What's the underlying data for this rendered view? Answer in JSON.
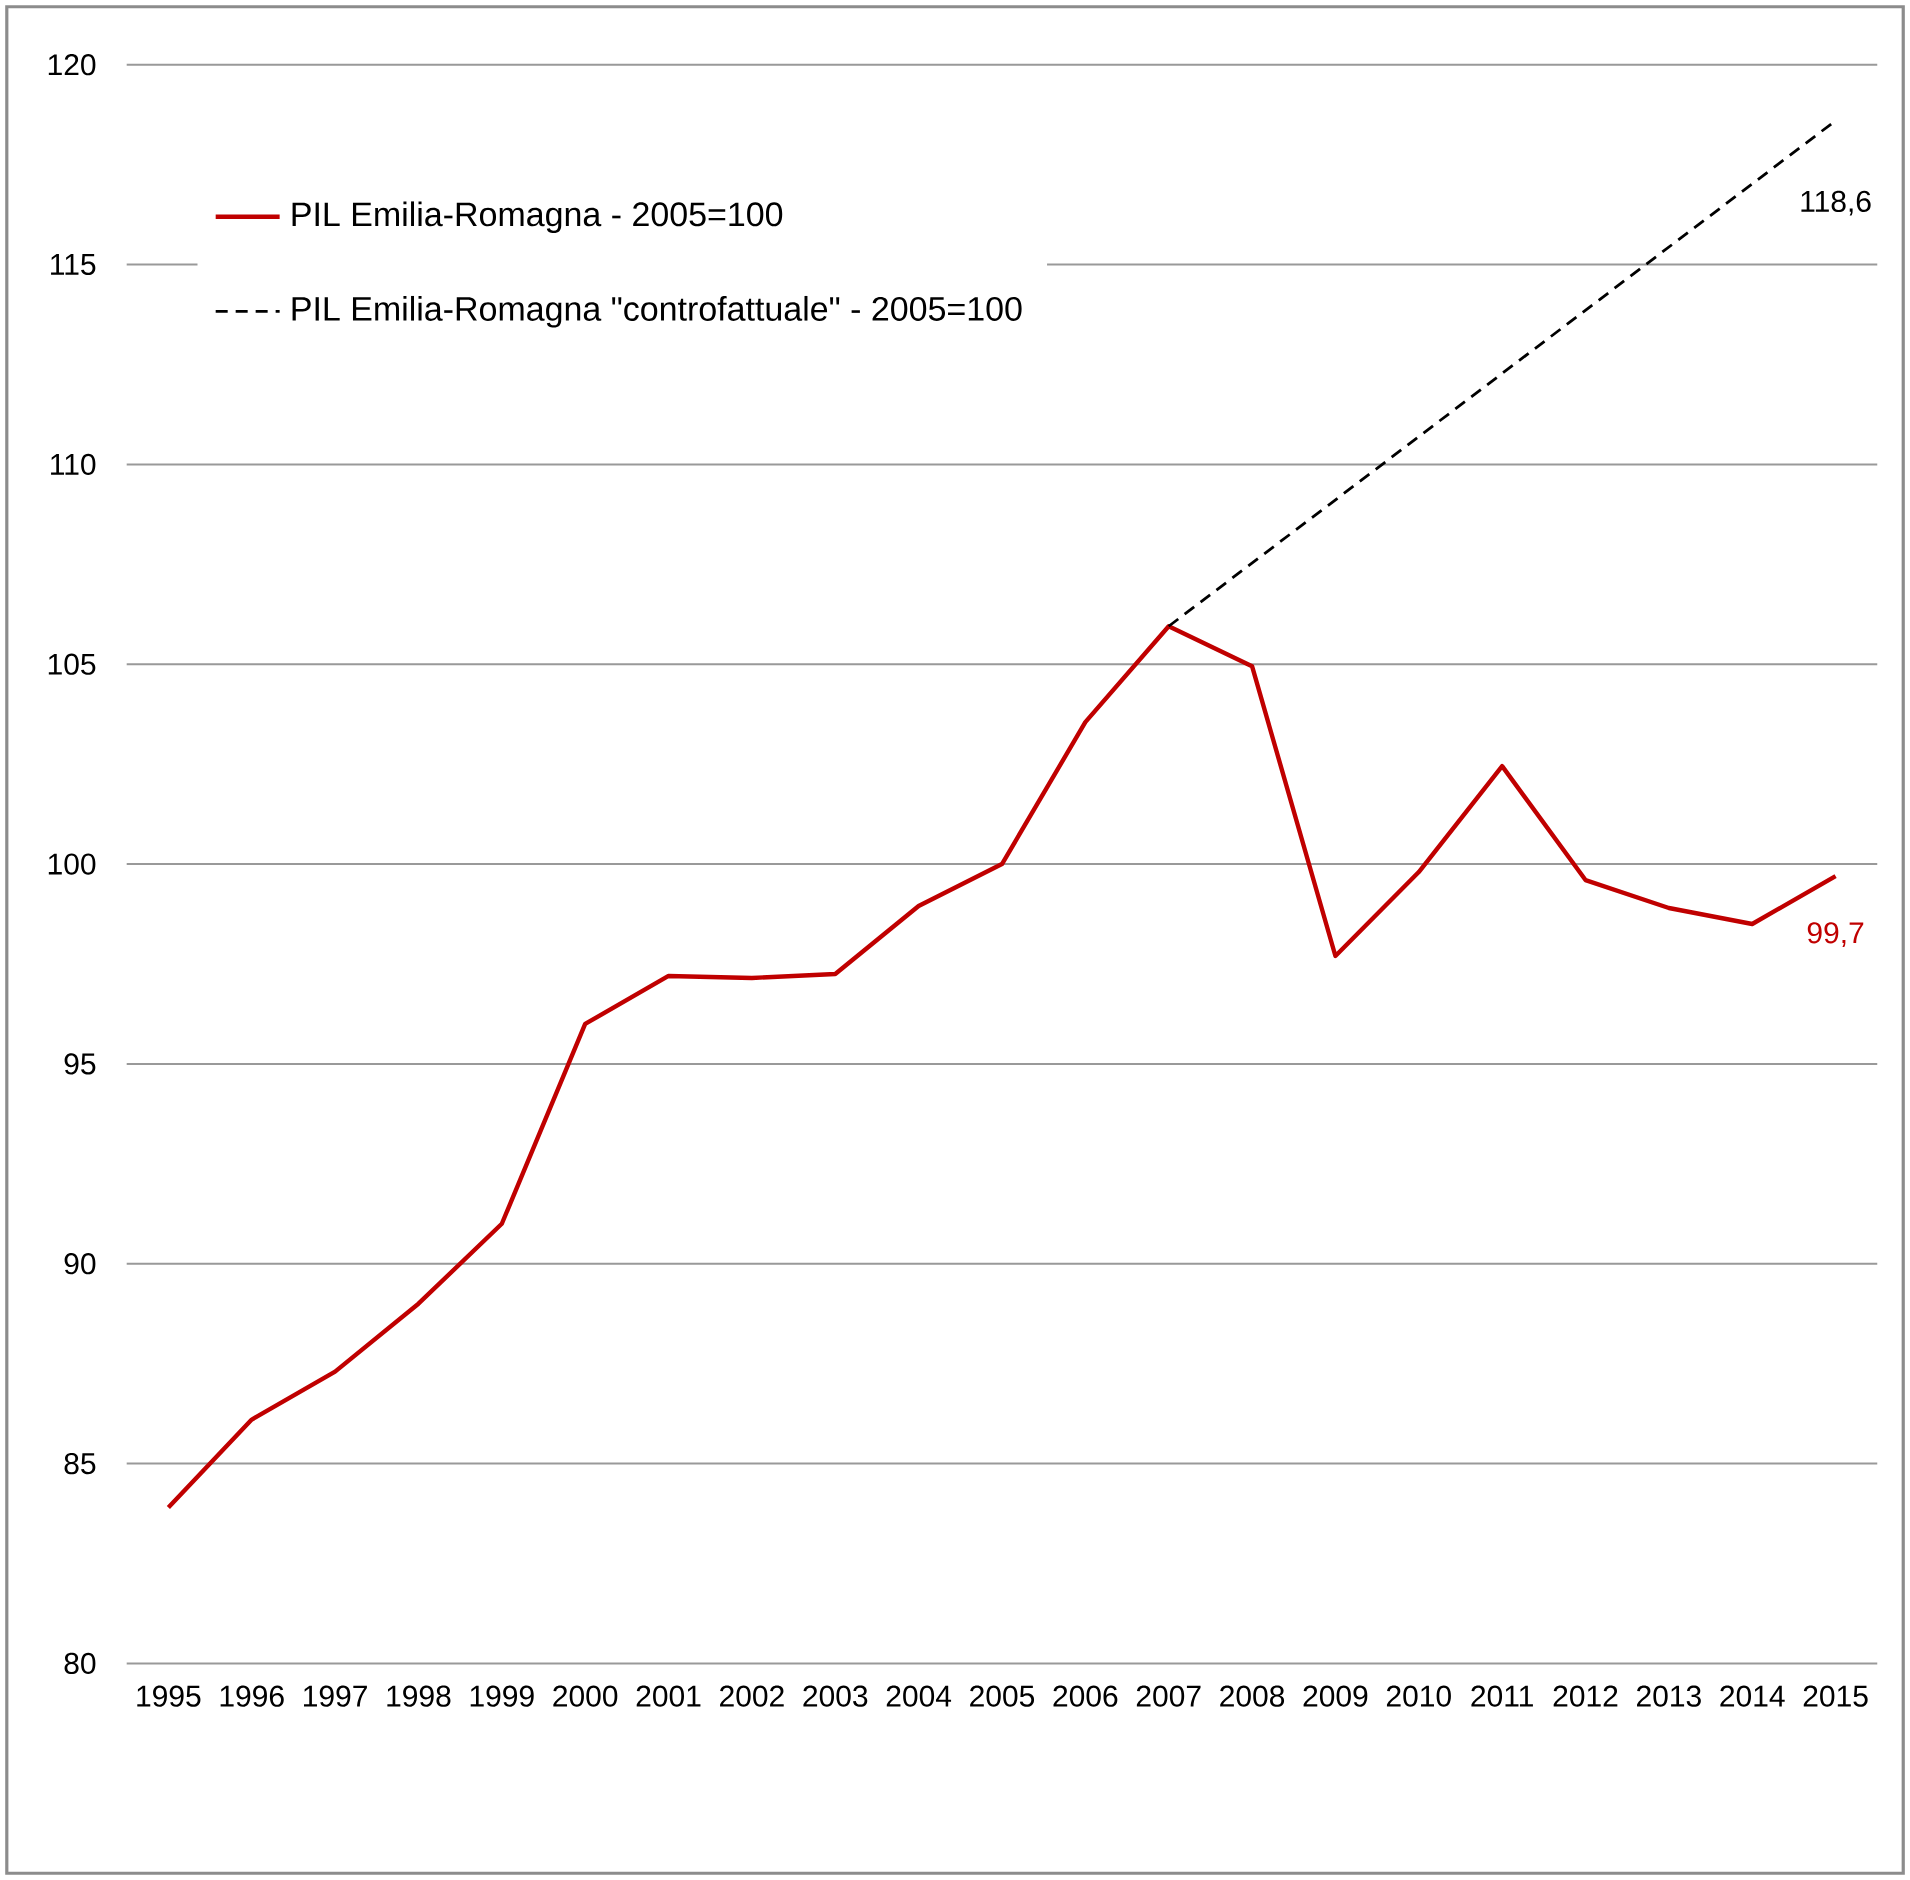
{
  "chart_data": {
    "type": "line",
    "categories": [
      "1995",
      "1996",
      "1997",
      "1998",
      "1999",
      "2000",
      "2001",
      "2002",
      "2003",
      "2004",
      "2005",
      "2006",
      "2007",
      "2008",
      "2009",
      "2010",
      "2011",
      "2012",
      "2013",
      "2014",
      "2015"
    ],
    "series": [
      {
        "name": "PIL Emilia-Romagna - 2005=100",
        "color": "#c00000",
        "line_style": "solid",
        "values": [
          83.9,
          86.1,
          87.3,
          89.0,
          91.0,
          96.0,
          97.2,
          97.15,
          97.25,
          98.95,
          100,
          103.55,
          105.95,
          104.95,
          97.7,
          99.8,
          102.45,
          99.6,
          98.9,
          98.5,
          99.7
        ],
        "value_labels": [
          null,
          null,
          null,
          null,
          null,
          null,
          null,
          null,
          null,
          null,
          null,
          null,
          null,
          null,
          null,
          null,
          null,
          null,
          null,
          null,
          "99,7"
        ]
      },
      {
        "name": "PIL Emilia-Romagna \"controfattuale\" - 2005=100",
        "color": "#000000",
        "line_style": "dashed",
        "values": [
          null,
          null,
          null,
          null,
          null,
          null,
          null,
          null,
          null,
          null,
          null,
          null,
          105.95,
          null,
          null,
          null,
          null,
          null,
          null,
          null,
          118.6
        ],
        "value_labels": [
          null,
          null,
          null,
          null,
          null,
          null,
          null,
          null,
          null,
          null,
          null,
          null,
          null,
          null,
          null,
          null,
          null,
          null,
          null,
          null,
          "118,6"
        ]
      }
    ],
    "ylim": [
      80,
      120
    ],
    "yticks": [
      80,
      85,
      90,
      95,
      100,
      105,
      110,
      115,
      120
    ],
    "grid": "y",
    "legend": "top left",
    "marker": "none"
  }
}
